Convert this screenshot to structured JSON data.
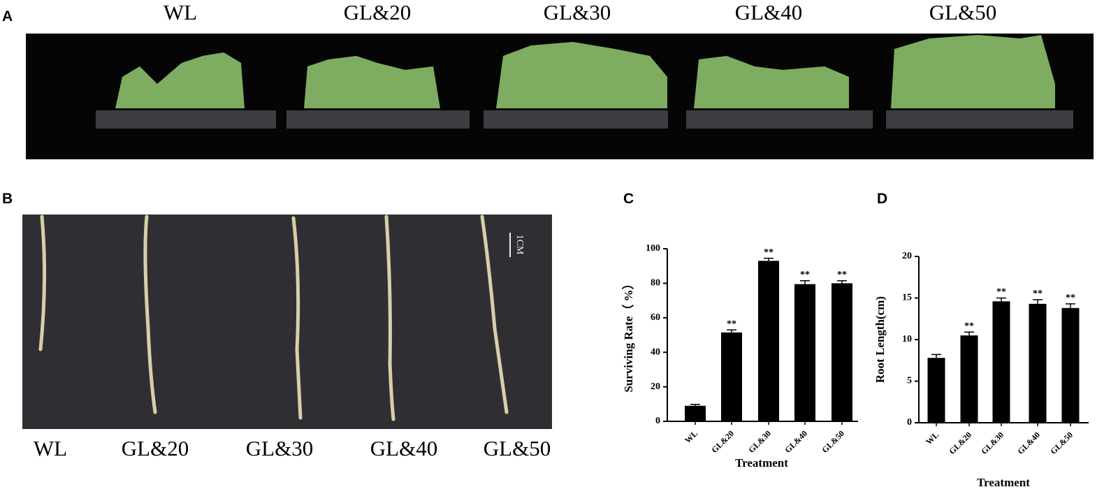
{
  "panels": {
    "A": {
      "label": "A",
      "treatments": [
        "WL",
        "GL&20",
        "GL&30",
        "GL&40",
        "GL&50"
      ]
    },
    "B": {
      "label": "B",
      "scale_label": "1CM",
      "treatments": [
        "WL",
        "GL&20",
        "GL&30",
        "GL&40",
        "GL&50"
      ]
    }
  },
  "chart_data": [
    {
      "type": "bar",
      "panel_label": "C",
      "ylabel": "Surviving Rate（ %）",
      "xlabel": "Treatment",
      "categories": [
        "WL",
        "GL&20",
        "GL&30",
        "GL&40",
        "GL&50"
      ],
      "values": [
        9,
        51.5,
        93,
        79.5,
        80
      ],
      "errors": [
        0.8,
        1.5,
        1.5,
        2,
        1.5
      ],
      "value_labels": [
        null,
        "**",
        "**",
        "**",
        "**"
      ],
      "color": "#000000",
      "ylim": [
        0,
        100
      ],
      "yticks": [
        0,
        20,
        40,
        60,
        80,
        100
      ]
    },
    {
      "type": "bar",
      "panel_label": "D",
      "ylabel": "Root Length(cm)",
      "xlabel": "Treatment",
      "categories": [
        "WL",
        "GL&20",
        "GL&30",
        "GL&40",
        "GL&50"
      ],
      "values": [
        7.8,
        10.5,
        14.6,
        14.3,
        13.8
      ],
      "errors": [
        0.4,
        0.4,
        0.4,
        0.5,
        0.5
      ],
      "value_labels": [
        null,
        "**",
        "**",
        "**",
        "**"
      ],
      "color": "#000000",
      "ylim": [
        0,
        20
      ],
      "yticks": [
        0,
        5,
        10,
        15,
        20
      ]
    }
  ]
}
